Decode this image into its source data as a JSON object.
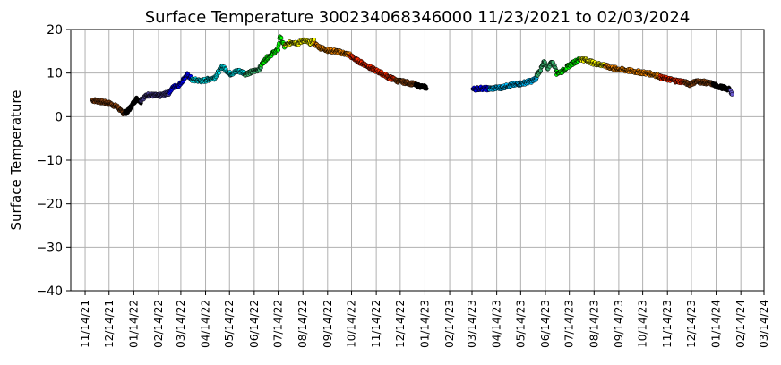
{
  "chart_data": {
    "type": "scatter",
    "title": "Surface Temperature 300234068346000  11/23/2021 to 02/03/2024",
    "xlabel": "",
    "ylabel": "Surface Temperature",
    "ylim": [
      -40,
      20
    ],
    "yticks": [
      "−40",
      "−30",
      "−20",
      "−10",
      "0",
      "10",
      "20"
    ],
    "xlim": [
      "2021-10-27",
      "2024-03-14"
    ],
    "xticks": [
      "11/14/21",
      "12/14/21",
      "01/14/22",
      "02/14/22",
      "03/14/22",
      "04/14/22",
      "05/14/22",
      "06/14/22",
      "07/14/22",
      "08/14/22",
      "09/14/22",
      "10/14/22",
      "11/14/22",
      "12/14/22",
      "01/14/23",
      "02/14/23",
      "03/14/23",
      "04/14/23",
      "05/14/23",
      "06/14/23",
      "07/14/23",
      "08/14/23",
      "09/14/23",
      "10/14/23",
      "11/14/23",
      "12/14/23",
      "01/14/24",
      "02/14/24",
      "03/14/24"
    ],
    "grid": true,
    "legend": "none",
    "series": [
      {
        "color": "#8B4513",
        "points": [
          [
            "2021-11-23",
            3.8
          ],
          [
            "2021-12-05",
            3.4
          ],
          [
            "2021-12-15",
            3.0
          ],
          [
            "2021-12-25",
            2.2
          ],
          [
            "2021-12-30",
            1.0
          ],
          [
            "2022-01-03",
            0.8
          ]
        ]
      },
      {
        "color": "#000000",
        "points": [
          [
            "2022-01-03",
            0.8
          ],
          [
            "2022-01-08",
            1.5
          ],
          [
            "2022-01-13",
            3.0
          ],
          [
            "2022-01-18",
            4.2
          ],
          [
            "2022-01-23",
            3.4
          ]
        ]
      },
      {
        "color": "#483D8B",
        "points": [
          [
            "2022-01-23",
            4.0
          ],
          [
            "2022-02-01",
            5.0
          ],
          [
            "2022-02-15",
            4.8
          ],
          [
            "2022-02-28",
            5.5
          ]
        ]
      },
      {
        "color": "#0000FF",
        "points": [
          [
            "2022-02-28",
            5.8
          ],
          [
            "2022-03-05",
            6.8
          ],
          [
            "2022-03-12",
            7.3
          ],
          [
            "2022-03-17",
            8.5
          ],
          [
            "2022-03-22",
            9.6
          ],
          [
            "2022-03-27",
            8.8
          ]
        ]
      },
      {
        "color": "#00E5EE",
        "points": [
          [
            "2022-03-27",
            8.5
          ],
          [
            "2022-04-10",
            8.2
          ],
          [
            "2022-04-25",
            8.9
          ],
          [
            "2022-05-05",
            11.5
          ],
          [
            "2022-05-15",
            9.8
          ],
          [
            "2022-05-25",
            10.5
          ],
          [
            "2022-06-02",
            10.0
          ]
        ]
      },
      {
        "color": "#3CB371",
        "points": [
          [
            "2022-06-02",
            9.8
          ],
          [
            "2022-06-10",
            10.2
          ],
          [
            "2022-06-18",
            10.7
          ],
          [
            "2022-06-23",
            11.5
          ]
        ]
      },
      {
        "color": "#00FF00",
        "points": [
          [
            "2022-06-23",
            12.0
          ],
          [
            "2022-06-30",
            13.5
          ],
          [
            "2022-07-07",
            14.5
          ],
          [
            "2022-07-14",
            15.5
          ],
          [
            "2022-07-16",
            18.5
          ],
          [
            "2022-07-22",
            16.0
          ]
        ]
      },
      {
        "color": "#FFFF00",
        "points": [
          [
            "2022-07-22",
            16.2
          ],
          [
            "2022-08-01",
            17.2
          ],
          [
            "2022-08-08",
            16.8
          ],
          [
            "2022-08-15",
            17.6
          ],
          [
            "2022-08-22",
            16.9
          ],
          [
            "2022-08-28",
            17.3
          ]
        ]
      },
      {
        "color": "#FF8C00",
        "points": [
          [
            "2022-08-28",
            16.8
          ],
          [
            "2022-09-05",
            15.8
          ],
          [
            "2022-09-15",
            15.2
          ],
          [
            "2022-09-25",
            15.0
          ],
          [
            "2022-10-05",
            14.5
          ],
          [
            "2022-10-12",
            14.2
          ]
        ]
      },
      {
        "color": "#FF2A00",
        "points": [
          [
            "2022-10-12",
            14.0
          ],
          [
            "2022-10-20",
            13.0
          ],
          [
            "2022-10-30",
            12.0
          ],
          [
            "2022-11-10",
            10.9
          ],
          [
            "2022-11-20",
            10.0
          ],
          [
            "2022-11-30",
            9.0
          ],
          [
            "2022-12-08",
            8.5
          ]
        ]
      },
      {
        "color": "#8B4513",
        "points": [
          [
            "2022-12-08",
            8.3
          ],
          [
            "2022-12-20",
            7.9
          ],
          [
            "2023-01-02",
            7.4
          ]
        ]
      },
      {
        "color": "#000000",
        "points": [
          [
            "2023-01-02",
            7.2
          ],
          [
            "2023-01-10",
            6.9
          ],
          [
            "2023-01-16",
            6.7
          ]
        ]
      },
      {
        "color": "#0000FF",
        "points": [
          [
            "2023-03-15",
            6.3
          ],
          [
            "2023-03-25",
            6.5
          ],
          [
            "2023-04-05",
            6.4
          ]
        ]
      },
      {
        "color": "#00BFFF",
        "points": [
          [
            "2023-04-05",
            6.4
          ],
          [
            "2023-04-20",
            6.7
          ],
          [
            "2023-05-01",
            7.2
          ],
          [
            "2023-05-15",
            7.6
          ],
          [
            "2023-05-28",
            8.2
          ],
          [
            "2023-06-03",
            8.8
          ]
        ]
      },
      {
        "color": "#3CB371",
        "points": [
          [
            "2023-06-03",
            9.5
          ],
          [
            "2023-06-08",
            10.8
          ],
          [
            "2023-06-12",
            12.5
          ],
          [
            "2023-06-17",
            11.2
          ],
          [
            "2023-06-22",
            12.6
          ],
          [
            "2023-06-28",
            10.8
          ]
        ]
      },
      {
        "color": "#00FF00",
        "points": [
          [
            "2023-06-28",
            10.0
          ],
          [
            "2023-07-05",
            10.4
          ],
          [
            "2023-07-12",
            11.5
          ],
          [
            "2023-07-20",
            12.5
          ],
          [
            "2023-07-28",
            13.2
          ]
        ]
      },
      {
        "color": "#FFFF00",
        "points": [
          [
            "2023-07-28",
            13.3
          ],
          [
            "2023-08-05",
            12.9
          ],
          [
            "2023-08-12",
            12.4
          ],
          [
            "2023-08-20",
            12.0
          ],
          [
            "2023-08-28",
            11.8
          ]
        ]
      },
      {
        "color": "#FF8C00",
        "points": [
          [
            "2023-08-28",
            11.6
          ],
          [
            "2023-09-10",
            11.0
          ],
          [
            "2023-09-25",
            10.6
          ],
          [
            "2023-10-10",
            10.2
          ],
          [
            "2023-10-25",
            9.8
          ],
          [
            "2023-11-05",
            9.2
          ]
        ]
      },
      {
        "color": "#FF2A00",
        "points": [
          [
            "2023-11-05",
            9.0
          ],
          [
            "2023-11-15",
            8.6
          ],
          [
            "2023-11-25",
            8.2
          ],
          [
            "2023-12-05",
            8.0
          ]
        ]
      },
      {
        "color": "#8B4513",
        "points": [
          [
            "2023-12-05",
            7.9
          ],
          [
            "2023-12-12",
            7.4
          ],
          [
            "2023-12-20",
            8.1
          ],
          [
            "2023-12-30",
            7.9
          ],
          [
            "2024-01-10",
            7.5
          ]
        ]
      },
      {
        "color": "#000000",
        "points": [
          [
            "2024-01-10",
            7.4
          ],
          [
            "2024-01-17",
            6.9
          ],
          [
            "2024-01-24",
            6.6
          ],
          [
            "2024-01-31",
            6.2
          ]
        ]
      },
      {
        "color": "#6A5ACD",
        "points": [
          [
            "2024-01-31",
            6.0
          ],
          [
            "2024-02-02",
            5.6
          ],
          [
            "2024-02-03",
            5.2
          ]
        ]
      }
    ]
  }
}
